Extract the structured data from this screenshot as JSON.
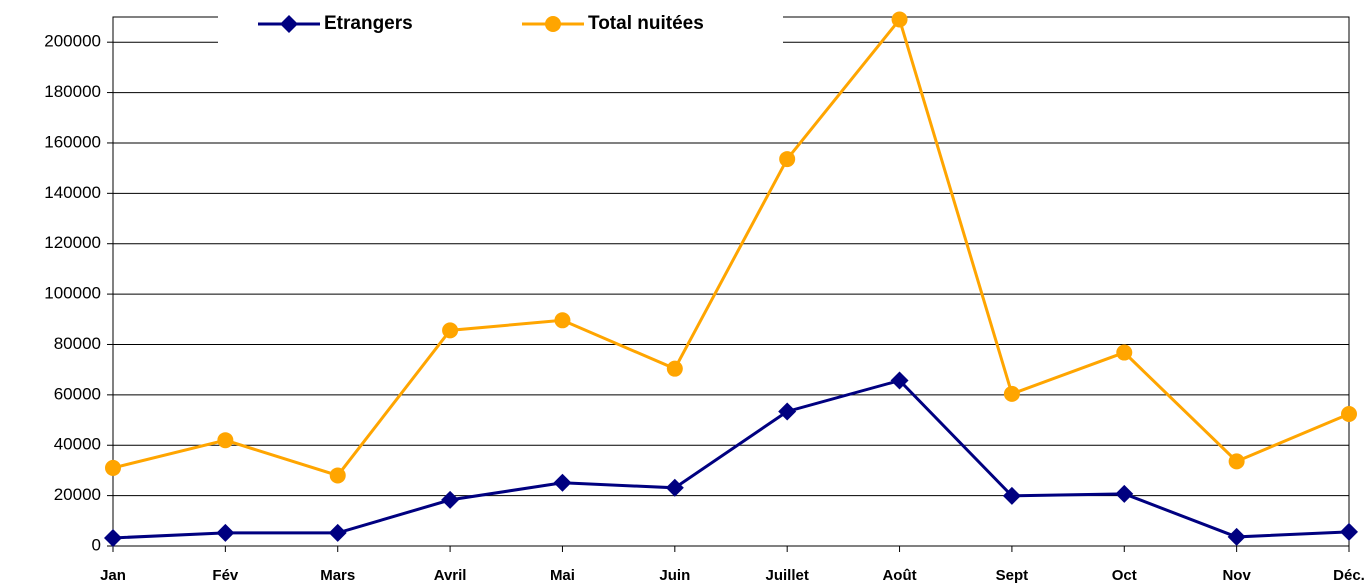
{
  "chart_data": {
    "type": "line",
    "categories": [
      "Jan",
      "Fév",
      "Mars",
      "Avril",
      "Mai",
      "Juin",
      "Juillet",
      "Août",
      "Sept",
      "Oct",
      "Nov",
      "Déc."
    ],
    "series": [
      {
        "name": "Etrangers",
        "color": "#000080",
        "marker": "diamond",
        "values": [
          3200,
          5200,
          5200,
          18300,
          25100,
          23100,
          53400,
          65700,
          19900,
          20700,
          3600,
          5600
        ]
      },
      {
        "name": "Total nuitées",
        "color": "#ffa500",
        "marker": "circle",
        "values": [
          31000,
          42000,
          28000,
          85600,
          89600,
          70400,
          153600,
          209000,
          60400,
          76800,
          33600,
          52400
        ]
      }
    ],
    "ylim": [
      0,
      210000
    ],
    "yticks": [
      0,
      20000,
      40000,
      60000,
      80000,
      100000,
      120000,
      140000,
      160000,
      180000,
      200000
    ],
    "grid": true,
    "legend": "top"
  }
}
